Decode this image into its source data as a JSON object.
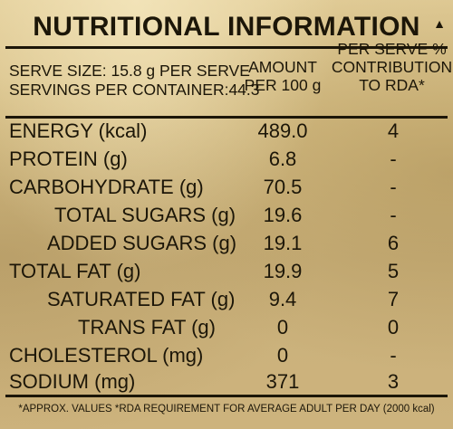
{
  "title": "NUTRITIONAL INFORMATION",
  "corner_mark": "▲",
  "serve_size": "SERVE SIZE: 15.8 g PER SERVE",
  "servings_per_container": "SERVINGS PER CONTAINER:44.3",
  "columns": {
    "amount_line1": "AMOUNT",
    "amount_line2": "PER 100 g",
    "rda_line1": "PER SERVE %",
    "rda_line2": "CONTRIBUTION",
    "rda_line3": "TO RDA*"
  },
  "rows": [
    {
      "name": "ENERGY (kcal)",
      "amount": "489.0",
      "rda": "4"
    },
    {
      "name": "PROTEIN (g)",
      "amount": "6.8",
      "rda": "-"
    },
    {
      "name": "CARBOHYDRATE (g)",
      "amount": "70.5",
      "rda": "-"
    },
    {
      "name": "TOTAL SUGARS (g)",
      "amount": "19.6",
      "rda": "-"
    },
    {
      "name": "ADDED SUGARS (g)",
      "amount": "19.1",
      "rda": "6"
    },
    {
      "name": "TOTAL FAT (g)",
      "amount": "19.9",
      "rda": "5"
    },
    {
      "name": "SATURATED FAT (g)",
      "amount": "9.4",
      "rda": "7"
    },
    {
      "name": "TRANS FAT (g)",
      "amount": "0",
      "rda": "0"
    },
    {
      "name": "CHOLESTEROL (mg)",
      "amount": "0",
      "rda": "-"
    },
    {
      "name": "SODIUM (mg)",
      "amount": "371",
      "rda": "3"
    }
  ],
  "footer": "*APPROX. VALUES  *RDA REQUIREMENT FOR AVERAGE ADULT PER DAY (2000 kcal)",
  "colors": {
    "ink": "#1c1608",
    "background_gold": "#d5bd84"
  }
}
